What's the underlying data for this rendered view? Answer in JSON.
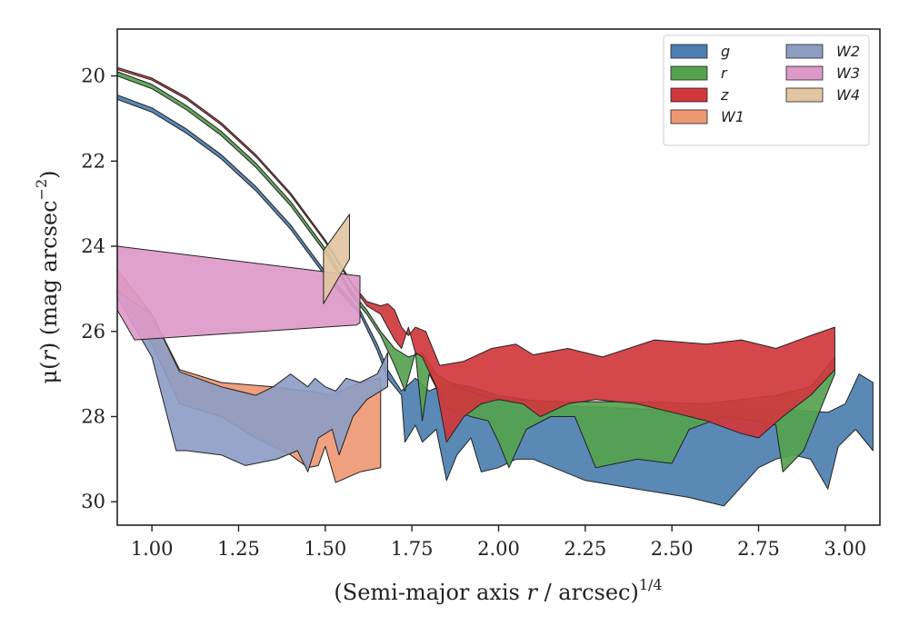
{
  "chart_data": {
    "type": "area",
    "xlabel_main": "(Semi-major axis ",
    "xlabel_var": "r",
    "xlabel_unit": " / arcsec)",
    "xlabel_exp": "1/4",
    "ylabel_main": "μ(",
    "ylabel_var": "r",
    "ylabel_unit": ") (mag arcsec",
    "ylabel_exp": "−2",
    "xlim": [
      0.9,
      3.1
    ],
    "ylim": [
      30.55,
      18.9
    ],
    "y_inverted": true,
    "grid": false,
    "legend_placement": "top-right",
    "xticks": [
      "1.00",
      "1.25",
      "1.50",
      "1.75",
      "2.00",
      "2.25",
      "2.50",
      "2.75",
      "3.00"
    ],
    "yticks": [
      "20",
      "22",
      "24",
      "26",
      "28",
      "30"
    ],
    "series": [
      {
        "name": "g",
        "color": "#4c7fb0",
        "upper": [
          [
            0.9,
            20.45
          ],
          [
            1.0,
            20.75
          ],
          [
            1.1,
            21.25
          ],
          [
            1.2,
            21.85
          ],
          [
            1.3,
            22.6
          ],
          [
            1.4,
            23.5
          ],
          [
            1.5,
            24.6
          ],
          [
            1.6,
            25.5
          ],
          [
            1.65,
            26.3
          ],
          [
            1.68,
            26.9
          ],
          [
            1.72,
            27.4
          ],
          [
            1.76,
            27.1
          ],
          [
            1.8,
            27.4
          ],
          [
            1.85,
            27.2
          ],
          [
            1.92,
            27.3
          ],
          [
            2.0,
            27.5
          ],
          [
            2.2,
            27.75
          ],
          [
            2.5,
            27.85
          ],
          [
            2.7,
            27.85
          ],
          [
            2.85,
            27.85
          ],
          [
            2.95,
            27.9
          ],
          [
            3.0,
            27.7
          ],
          [
            3.04,
            27.0
          ],
          [
            3.08,
            27.2
          ]
        ],
        "lower": [
          [
            0.9,
            20.55
          ],
          [
            1.0,
            20.85
          ],
          [
            1.1,
            21.35
          ],
          [
            1.2,
            21.95
          ],
          [
            1.3,
            22.7
          ],
          [
            1.4,
            23.6
          ],
          [
            1.5,
            24.7
          ],
          [
            1.6,
            25.6
          ],
          [
            1.65,
            26.45
          ],
          [
            1.68,
            27.1
          ],
          [
            1.7,
            27.3
          ],
          [
            1.72,
            27.5
          ],
          [
            1.73,
            28.6
          ],
          [
            1.76,
            28.2
          ],
          [
            1.78,
            28.6
          ],
          [
            1.82,
            28.3
          ],
          [
            1.85,
            29.5
          ],
          [
            1.88,
            28.9
          ],
          [
            1.92,
            28.5
          ],
          [
            1.95,
            29.3
          ],
          [
            2.0,
            29.2
          ],
          [
            2.05,
            29.0
          ],
          [
            2.1,
            29.0
          ],
          [
            2.25,
            29.5
          ],
          [
            2.4,
            29.7
          ],
          [
            2.55,
            29.9
          ],
          [
            2.65,
            30.1
          ],
          [
            2.75,
            29.2
          ],
          [
            2.8,
            29.0
          ],
          [
            2.85,
            28.9
          ],
          [
            2.9,
            29.0
          ],
          [
            2.95,
            29.7
          ],
          [
            2.98,
            28.7
          ],
          [
            3.03,
            28.3
          ],
          [
            3.08,
            28.8
          ]
        ]
      },
      {
        "name": "r",
        "color": "#55a24f",
        "upper": [
          [
            0.9,
            19.9
          ],
          [
            1.0,
            20.2
          ],
          [
            1.1,
            20.7
          ],
          [
            1.2,
            21.3
          ],
          [
            1.3,
            22.05
          ],
          [
            1.4,
            22.95
          ],
          [
            1.5,
            24.05
          ],
          [
            1.58,
            25.1
          ],
          [
            1.62,
            25.5
          ],
          [
            1.66,
            26.0
          ],
          [
            1.7,
            26.4
          ],
          [
            1.74,
            26.6
          ],
          [
            1.78,
            26.5
          ],
          [
            1.82,
            27.0
          ],
          [
            1.88,
            27.3
          ],
          [
            1.95,
            27.5
          ],
          [
            2.0,
            27.6
          ],
          [
            2.2,
            27.65
          ],
          [
            2.4,
            27.65
          ],
          [
            2.6,
            27.7
          ],
          [
            2.8,
            27.5
          ],
          [
            2.9,
            27.3
          ],
          [
            2.97,
            26.6
          ]
        ],
        "lower": [
          [
            0.9,
            20.0
          ],
          [
            1.0,
            20.3
          ],
          [
            1.1,
            20.8
          ],
          [
            1.2,
            21.4
          ],
          [
            1.3,
            22.15
          ],
          [
            1.4,
            23.05
          ],
          [
            1.5,
            24.15
          ],
          [
            1.58,
            25.2
          ],
          [
            1.62,
            25.6
          ],
          [
            1.66,
            26.1
          ],
          [
            1.7,
            26.8
          ],
          [
            1.73,
            27.4
          ],
          [
            1.76,
            26.5
          ],
          [
            1.78,
            28.1
          ],
          [
            1.8,
            27.0
          ],
          [
            1.85,
            27.8
          ],
          [
            1.92,
            28.0
          ],
          [
            1.97,
            28.1
          ],
          [
            2.0,
            28.6
          ],
          [
            2.03,
            29.2
          ],
          [
            2.08,
            28.3
          ],
          [
            2.15,
            28.0
          ],
          [
            2.22,
            28.0
          ],
          [
            2.28,
            29.2
          ],
          [
            2.4,
            29.0
          ],
          [
            2.5,
            29.1
          ],
          [
            2.55,
            28.3
          ],
          [
            2.65,
            28.0
          ],
          [
            2.75,
            28.1
          ],
          [
            2.8,
            28.2
          ],
          [
            2.82,
            29.3
          ],
          [
            2.88,
            28.8
          ],
          [
            2.97,
            27.0
          ]
        ]
      },
      {
        "name": "z",
        "color": "#d0383c",
        "upper": [
          [
            0.9,
            19.8
          ],
          [
            1.0,
            20.05
          ],
          [
            1.1,
            20.5
          ],
          [
            1.2,
            21.1
          ],
          [
            1.3,
            21.85
          ],
          [
            1.4,
            22.75
          ],
          [
            1.5,
            23.85
          ],
          [
            1.58,
            24.9
          ],
          [
            1.62,
            25.3
          ],
          [
            1.66,
            25.4
          ],
          [
            1.68,
            25.35
          ],
          [
            1.7,
            25.5
          ],
          [
            1.72,
            25.9
          ],
          [
            1.74,
            26.1
          ],
          [
            1.76,
            25.9
          ],
          [
            1.79,
            26.0
          ],
          [
            1.83,
            26.8
          ],
          [
            1.9,
            26.7
          ],
          [
            1.98,
            26.4
          ],
          [
            2.05,
            26.3
          ],
          [
            2.1,
            26.55
          ],
          [
            2.2,
            26.4
          ],
          [
            2.3,
            26.6
          ],
          [
            2.45,
            26.2
          ],
          [
            2.6,
            26.3
          ],
          [
            2.7,
            26.2
          ],
          [
            2.8,
            26.4
          ],
          [
            2.9,
            26.1
          ],
          [
            2.97,
            25.9
          ]
        ],
        "lower": [
          [
            0.9,
            19.85
          ],
          [
            1.0,
            20.1
          ],
          [
            1.1,
            20.55
          ],
          [
            1.2,
            21.15
          ],
          [
            1.3,
            21.9
          ],
          [
            1.4,
            22.8
          ],
          [
            1.5,
            23.9
          ],
          [
            1.58,
            24.95
          ],
          [
            1.62,
            25.4
          ],
          [
            1.66,
            25.6
          ],
          [
            1.7,
            26.2
          ],
          [
            1.72,
            26.4
          ],
          [
            1.74,
            25.9
          ],
          [
            1.76,
            26.5
          ],
          [
            1.78,
            26.6
          ],
          [
            1.82,
            27.3
          ],
          [
            1.85,
            28.6
          ],
          [
            1.9,
            28.0
          ],
          [
            1.95,
            27.7
          ],
          [
            2.0,
            27.6
          ],
          [
            2.07,
            27.7
          ],
          [
            2.12,
            28.0
          ],
          [
            2.2,
            27.7
          ],
          [
            2.28,
            27.6
          ],
          [
            2.4,
            27.7
          ],
          [
            2.5,
            27.9
          ],
          [
            2.6,
            28.1
          ],
          [
            2.7,
            28.4
          ],
          [
            2.75,
            28.5
          ],
          [
            2.82,
            28.0
          ],
          [
            2.9,
            27.5
          ],
          [
            2.97,
            26.9
          ]
        ]
      },
      {
        "name": "W1",
        "color": "#ee9873",
        "upper": [
          [
            0.9,
            24.55
          ],
          [
            1.0,
            25.6
          ],
          [
            1.08,
            26.9
          ],
          [
            1.2,
            27.2
          ],
          [
            1.35,
            27.3
          ],
          [
            1.45,
            27.4
          ],
          [
            1.52,
            27.5
          ],
          [
            1.6,
            27.2
          ],
          [
            1.66,
            27.1
          ]
        ],
        "lower": [
          [
            0.9,
            25.0
          ],
          [
            1.0,
            26.3
          ],
          [
            1.08,
            27.7
          ],
          [
            1.2,
            28.0
          ],
          [
            1.3,
            28.5
          ],
          [
            1.4,
            28.9
          ],
          [
            1.45,
            29.2
          ],
          [
            1.48,
            29.15
          ],
          [
            1.5,
            28.7
          ],
          [
            1.53,
            29.55
          ],
          [
            1.6,
            29.3
          ],
          [
            1.66,
            29.2
          ]
        ]
      },
      {
        "name": "W2",
        "color": "#8d9dc4",
        "upper": [
          [
            0.9,
            25.05
          ],
          [
            1.0,
            25.6
          ],
          [
            1.08,
            26.95
          ],
          [
            1.2,
            27.3
          ],
          [
            1.3,
            27.5
          ],
          [
            1.35,
            27.3
          ],
          [
            1.4,
            27.0
          ],
          [
            1.45,
            27.3
          ],
          [
            1.47,
            27.1
          ],
          [
            1.5,
            27.3
          ],
          [
            1.53,
            27.4
          ],
          [
            1.56,
            27.1
          ],
          [
            1.6,
            27.2
          ],
          [
            1.65,
            27.0
          ],
          [
            1.68,
            26.5
          ]
        ],
        "lower": [
          [
            0.9,
            25.2
          ],
          [
            1.0,
            26.6
          ],
          [
            1.07,
            28.8
          ],
          [
            1.1,
            28.8
          ],
          [
            1.2,
            28.9
          ],
          [
            1.27,
            29.15
          ],
          [
            1.36,
            29.0
          ],
          [
            1.42,
            28.8
          ],
          [
            1.45,
            29.3
          ],
          [
            1.48,
            28.5
          ],
          [
            1.52,
            28.3
          ],
          [
            1.54,
            28.9
          ],
          [
            1.58,
            28.0
          ],
          [
            1.62,
            27.6
          ],
          [
            1.68,
            27.3
          ]
        ]
      },
      {
        "name": "W3",
        "color": "#dd99c8",
        "upper": [
          [
            0.9,
            24.0
          ],
          [
            1.6,
            24.7
          ]
        ],
        "lower": [
          [
            0.9,
            25.5
          ],
          [
            0.95,
            26.2
          ],
          [
            1.59,
            25.85
          ],
          [
            1.6,
            25.8
          ]
        ]
      },
      {
        "name": "W4",
        "color": "#e2c5a2",
        "upper": [
          [
            1.495,
            24.1
          ],
          [
            1.57,
            23.25
          ]
        ],
        "lower": [
          [
            1.495,
            25.35
          ],
          [
            1.57,
            24.3
          ]
        ]
      }
    ]
  }
}
